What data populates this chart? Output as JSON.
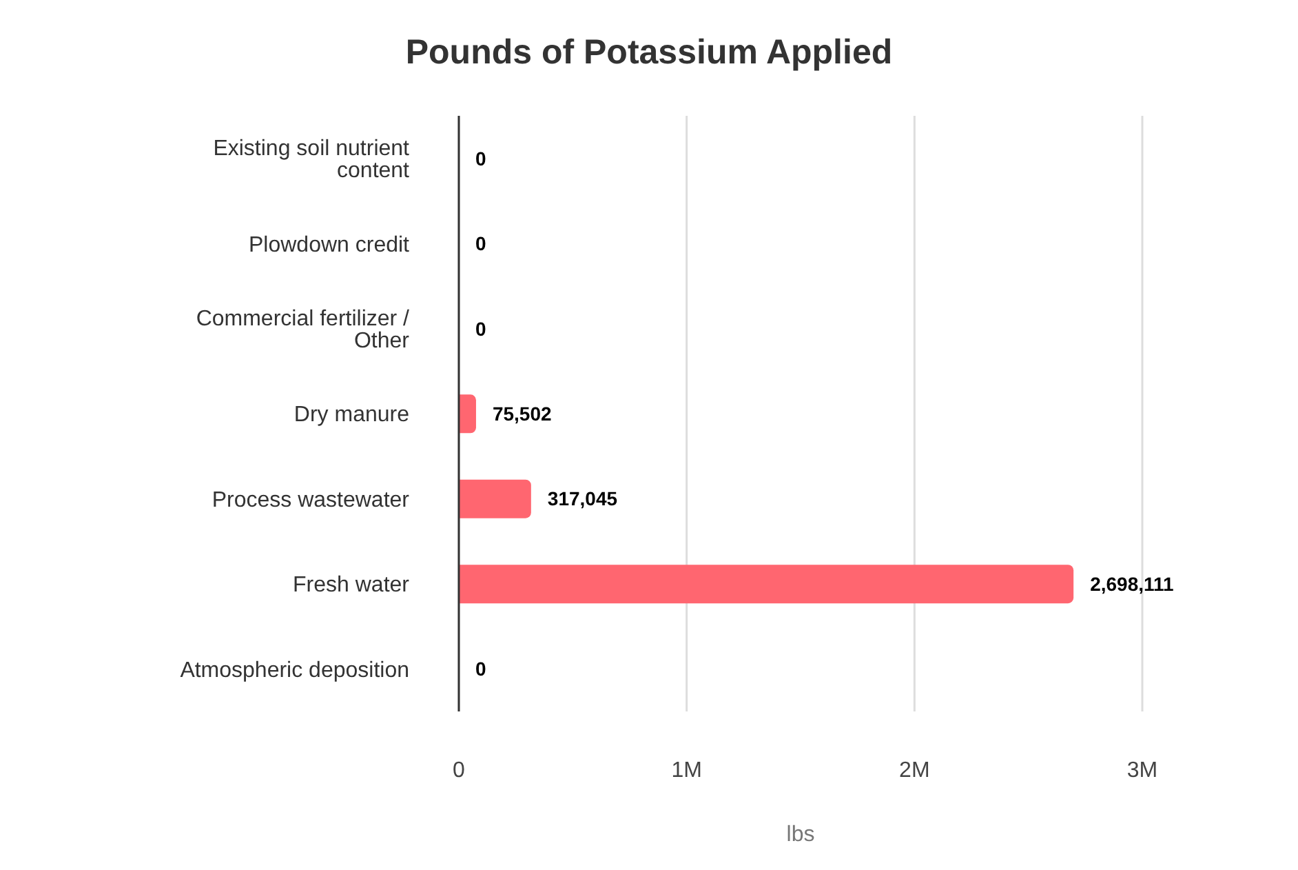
{
  "chart_data": {
    "type": "bar",
    "orientation": "horizontal",
    "title": "Pounds of Potassium Applied",
    "xlabel": "lbs",
    "categories": [
      "Existing soil nutrient content",
      "Plowdown credit",
      "Commercial fertilizer / Other",
      "Dry manure",
      "Process wastewater",
      "Fresh water",
      "Atmospheric deposition"
    ],
    "values": [
      0,
      0,
      0,
      75502,
      317045,
      2698111,
      0
    ],
    "color": "#ff6670",
    "xlim": [
      0,
      3000000
    ],
    "xticks": [
      0,
      {
        "value": 1000000,
        "label": "1M"
      },
      {
        "value": 2000000,
        "label": "2M"
      },
      {
        "value": 3000000,
        "label": "3M"
      }
    ],
    "value_labels": [
      "0",
      "0",
      "0",
      "75,502",
      "317,045",
      "2,698,111",
      "0"
    ],
    "grid": "x",
    "legend": false
  }
}
